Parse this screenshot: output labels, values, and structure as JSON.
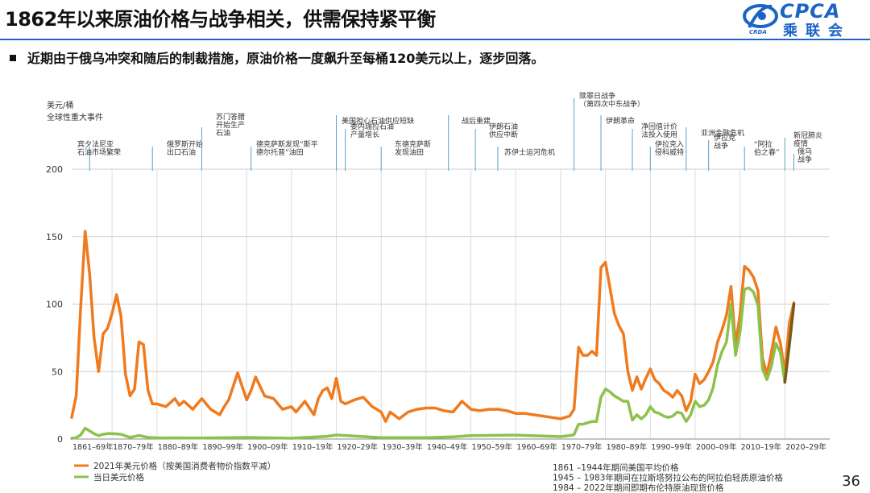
{
  "page": {
    "title": "1862年以来原油价格与战争相关，供需保持紧平衡",
    "bullet": "近期由于俄乌冲突和随后的制裁措施，原油价格一度飙升至每桶120美元以上，逐步回落。",
    "page_number": "36",
    "logo": {
      "text": "CPCA",
      "cn": "乘联会",
      "sub": "CRDA"
    }
  },
  "chart_data": {
    "type": "line",
    "ylabel": "美元/桶",
    "events_header": "全球性重大事件",
    "ylim": [
      0,
      200
    ],
    "yticks": [
      "0",
      "50",
      "100",
      "150",
      "200"
    ],
    "xlim": [
      1861,
      2030
    ],
    "xticks": [
      "1861–69年",
      "1870–79年",
      "1880–89年",
      "1890–99年",
      "1900–09年",
      "1910–19年",
      "1920–29年",
      "1930–39年",
      "1940–49年",
      "1950–59年",
      "1960–69年",
      "1970–79年",
      "1980–89年",
      "1990–99年",
      "2000–09年",
      "2010–19年",
      "2020–29年"
    ],
    "xtick_positions": [
      1861,
      1870,
      1880,
      1890,
      1900,
      1910,
      1920,
      1930,
      1940,
      1950,
      1960,
      1970,
      1980,
      1990,
      2000,
      2010,
      2020
    ],
    "events": [
      {
        "year": 1865,
        "lines": [
          "宾夕法尼亚",
          "石油市场繁荣"
        ]
      },
      {
        "year": 1879,
        "lines": [
          "俄罗斯开始",
          "出口石油"
        ]
      },
      {
        "year": 1890,
        "lines": [
          "苏门答腊",
          "开始生产",
          "石油"
        ]
      },
      {
        "year": 1901,
        "lines": [
          "德克萨斯发现“斯平",
          "德尔托普”油田"
        ]
      },
      {
        "year": 1920,
        "lines": [
          "美国担心石油供应短缺"
        ]
      },
      {
        "year": 1922,
        "lines": [
          "委内瑞拉石油",
          "产量增长"
        ]
      },
      {
        "year": 1930,
        "lines": [
          "东德克萨斯",
          "发现油田"
        ]
      },
      {
        "year": 1945,
        "lines": [
          "战后重建"
        ]
      },
      {
        "year": 1951,
        "lines": [
          "伊朗石油",
          "供应中断"
        ]
      },
      {
        "year": 1956,
        "lines": [
          "苏伊士运河危机"
        ]
      },
      {
        "year": 1973,
        "lines": [
          "赎罪日战争",
          "（第四次中东战争）"
        ]
      },
      {
        "year": 1979,
        "lines": [
          "伊朗革命"
        ]
      },
      {
        "year": 1986,
        "lines": [
          "净回值计价",
          "法投入使用"
        ]
      },
      {
        "year": 1990,
        "lines": [
          "伊拉克入",
          "侵科威特"
        ]
      },
      {
        "year": 1998,
        "lines": [
          "亚洲金融危机"
        ]
      },
      {
        "year": 2003,
        "lines": [
          "伊拉克",
          "战争"
        ]
      },
      {
        "year": 2011,
        "lines": [
          "“阿拉",
          "伯之春”"
        ]
      },
      {
        "year": 2020,
        "lines": [
          "新冠肺炎",
          "疫情"
        ]
      },
      {
        "year": 2022,
        "lines": [
          "俄乌",
          "战争"
        ]
      }
    ],
    "series": [
      {
        "name": "2021年美元价格（按美国消费者物价指数平减）",
        "color": "#f07a1e",
        "x": [
          1861,
          1862,
          1863,
          1864,
          1865,
          1866,
          1867,
          1868,
          1869,
          1870,
          1871,
          1872,
          1873,
          1874,
          1875,
          1876,
          1877,
          1878,
          1879,
          1880,
          1882,
          1884,
          1885,
          1886,
          1888,
          1890,
          1892,
          1894,
          1895,
          1896,
          1898,
          1900,
          1901,
          1902,
          1904,
          1906,
          1908,
          1910,
          1911,
          1913,
          1915,
          1916,
          1917,
          1918,
          1919,
          1920,
          1921,
          1922,
          1924,
          1926,
          1928,
          1930,
          1931,
          1932,
          1934,
          1936,
          1938,
          1940,
          1942,
          1944,
          1946,
          1948,
          1950,
          1952,
          1954,
          1956,
          1958,
          1960,
          1962,
          1964,
          1966,
          1968,
          1970,
          1971,
          1972,
          1973,
          1974,
          1975,
          1976,
          1977,
          1978,
          1979,
          1980,
          1981,
          1982,
          1983,
          1984,
          1985,
          1986,
          1987,
          1988,
          1989,
          1990,
          1991,
          1992,
          1993,
          1994,
          1995,
          1996,
          1997,
          1998,
          1999,
          2000,
          2001,
          2002,
          2003,
          2004,
          2005,
          2006,
          2007,
          2008,
          2009,
          2010,
          2011,
          2012,
          2013,
          2014,
          2015,
          2016,
          2017,
          2018,
          2019,
          2020,
          2021,
          2022
        ],
        "y": [
          16,
          32,
          97,
          154,
          122,
          75,
          50,
          78,
          82,
          93,
          107,
          91,
          48,
          32,
          37,
          72,
          70,
          36,
          26,
          26,
          24,
          30,
          25,
          28,
          22,
          30,
          22,
          18,
          24,
          29,
          49,
          29,
          36,
          46,
          32,
          30,
          22,
          24,
          20,
          28,
          18,
          30,
          36,
          38,
          30,
          45,
          28,
          26,
          29,
          31,
          24,
          20,
          13,
          20,
          15,
          20,
          22,
          23,
          23,
          21,
          20,
          28,
          22,
          21,
          22,
          22,
          21,
          19,
          19,
          18,
          17,
          16,
          15,
          16,
          17,
          22,
          68,
          62,
          62,
          65,
          62,
          127,
          131,
          112,
          93,
          84,
          78,
          50,
          36,
          46,
          37,
          45,
          52,
          44,
          41,
          36,
          34,
          31,
          36,
          32,
          21,
          28,
          48,
          41,
          44,
          50,
          57,
          72,
          81,
          92,
          113,
          70,
          92,
          128,
          125,
          120,
          110,
          60,
          48,
          64,
          83,
          71,
          49,
          86,
          101
        ]
      },
      {
        "name": "当日美元价格",
        "color": "#8dc24a",
        "x": [
          1861,
          1862,
          1863,
          1864,
          1865,
          1866,
          1867,
          1868,
          1869,
          1870,
          1872,
          1874,
          1876,
          1878,
          1880,
          1890,
          1900,
          1910,
          1918,
          1920,
          1930,
          1940,
          1946,
          1950,
          1960,
          1970,
          1972,
          1973,
          1974,
          1975,
          1976,
          1977,
          1978,
          1979,
          1980,
          1981,
          1982,
          1983,
          1984,
          1985,
          1986,
          1987,
          1988,
          1989,
          1990,
          1991,
          1992,
          1993,
          1994,
          1995,
          1996,
          1997,
          1998,
          1999,
          2000,
          2001,
          2002,
          2003,
          2004,
          2005,
          2006,
          2007,
          2008,
          2009,
          2010,
          2011,
          2012,
          2013,
          2014,
          2015,
          2016,
          2017,
          2018,
          2019,
          2020,
          2021,
          2022
        ],
        "y": [
          0.5,
          1,
          3,
          8,
          6,
          4,
          2.5,
          3.5,
          4,
          4,
          3.5,
          1.2,
          2.6,
          1.2,
          0.9,
          0.8,
          1.2,
          0.6,
          2,
          3,
          1,
          1,
          1.6,
          2.5,
          2.9,
          1.8,
          2.5,
          3.3,
          11,
          11,
          12,
          13,
          13,
          31,
          37,
          35,
          32,
          30,
          28,
          28,
          14,
          18,
          15,
          18,
          24,
          20,
          19,
          17,
          16,
          17,
          20,
          19,
          13,
          18,
          28,
          24,
          25,
          29,
          38,
          55,
          65,
          72,
          100,
          62,
          79,
          111,
          112,
          109,
          99,
          52,
          44,
          54,
          71,
          64,
          42,
          70,
          100
        ]
      }
    ],
    "war_segment": {
      "x": [
        2020,
        2021,
        2022
      ],
      "y": [
        42,
        70,
        100
      ],
      "color": "#7a5a1a"
    },
    "legend": [
      "2021年美元价格（按美国消费者物价指数平减）",
      "当日美元价格"
    ],
    "notes": [
      "1861 –1944年期间美国平均价格",
      "1945 – 1983年期间在拉斯塔努拉公布的阿拉伯轻质原油价格",
      "1984 – 2022年期间即期布伦特原油现货价格"
    ]
  }
}
